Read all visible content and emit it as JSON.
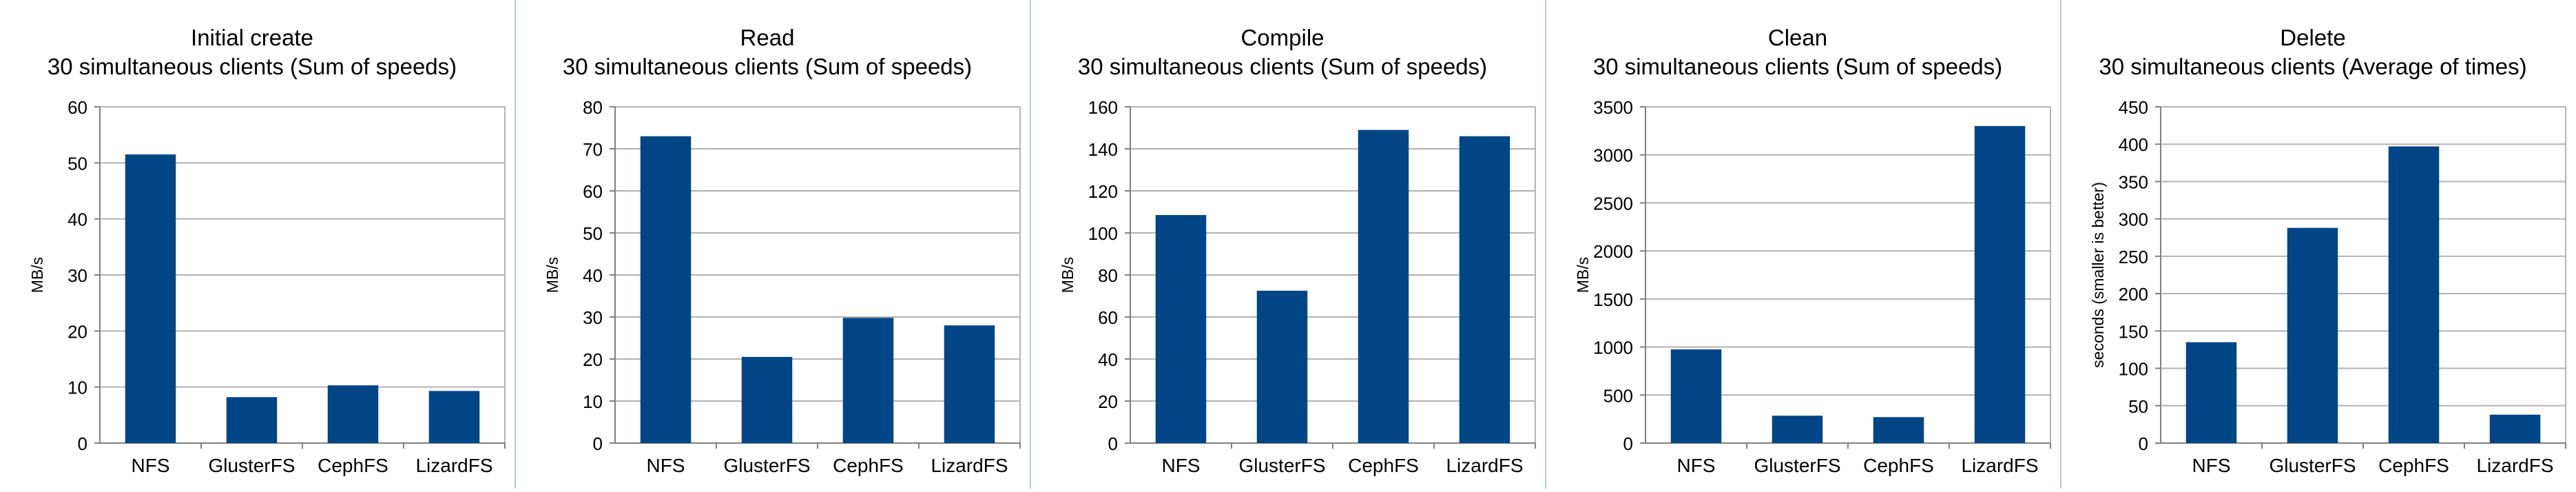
{
  "colors": {
    "bar": "#004586",
    "grid": "#b3b3b3",
    "axis": "#808080",
    "text": "#000000",
    "divider": "#b9c9dc"
  },
  "chart_data": [
    {
      "type": "bar",
      "title": "Initial create",
      "subtitle": "30 simultaneous clients (Sum of speeds)",
      "ylabel": "MB/s",
      "categories": [
        "NFS",
        "GlusterFS",
        "CephFS",
        "LizardFS"
      ],
      "values": [
        51.5,
        8.2,
        10.3,
        9.3
      ],
      "ylim": [
        0,
        60
      ],
      "yticks": [
        "0",
        "10",
        "20",
        "30",
        "40",
        "50",
        "60"
      ],
      "grid": true,
      "legend": "none"
    },
    {
      "type": "bar",
      "title": "Read",
      "subtitle": "30 simultaneous clients (Sum of speeds)",
      "ylabel": "MB/s",
      "categories": [
        "NFS",
        "GlusterFS",
        "CephFS",
        "LizardFS"
      ],
      "values": [
        73,
        20.5,
        29.8,
        28
      ],
      "ylim": [
        0,
        80
      ],
      "yticks": [
        "0",
        "10",
        "20",
        "30",
        "40",
        "50",
        "60",
        "70",
        "80"
      ],
      "grid": true,
      "legend": "none"
    },
    {
      "type": "bar",
      "title": "Compile",
      "subtitle": "30 simultaneous clients (Sum of speeds)",
      "ylabel": "MB/s",
      "categories": [
        "NFS",
        "GlusterFS",
        "CephFS",
        "LizardFS"
      ],
      "values": [
        108.5,
        72.5,
        149,
        146
      ],
      "ylim": [
        0,
        160
      ],
      "yticks": [
        "0",
        "20",
        "40",
        "60",
        "80",
        "100",
        "120",
        "140",
        "160"
      ],
      "grid": true,
      "legend": "none"
    },
    {
      "type": "bar",
      "title": "Clean",
      "subtitle": "30 simultaneous clients (Sum of speeds)",
      "ylabel": "MB/s",
      "categories": [
        "NFS",
        "GlusterFS",
        "CephFS",
        "LizardFS"
      ],
      "values": [
        975,
        285,
        270,
        3300
      ],
      "ylim": [
        0,
        3500
      ],
      "yticks": [
        "0",
        "500",
        "1000",
        "1500",
        "2000",
        "2500",
        "3000",
        "3500"
      ],
      "grid": true,
      "legend": "none"
    },
    {
      "type": "bar",
      "title": "Delete",
      "subtitle": "30 simultaneous clients (Average of times)",
      "ylabel": "seconds (smaller is better)",
      "categories": [
        "NFS",
        "GlusterFS",
        "CephFS",
        "LizardFS"
      ],
      "values": [
        135,
        288,
        397,
        38
      ],
      "ylim": [
        0,
        450
      ],
      "yticks": [
        "0",
        "50",
        "100",
        "150",
        "200",
        "250",
        "300",
        "350",
        "400",
        "450"
      ],
      "grid": true,
      "legend": "none"
    }
  ]
}
